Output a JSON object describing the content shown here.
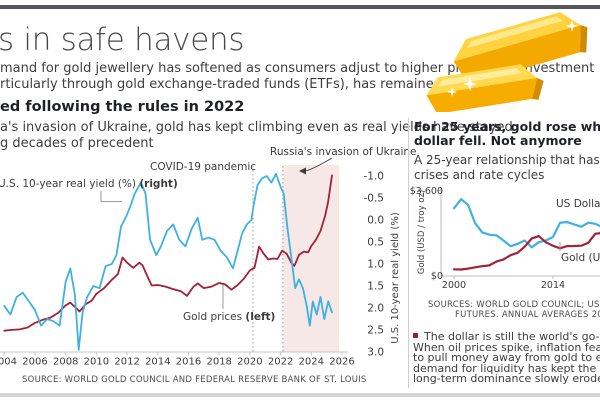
{
  "page": {
    "title": "s in safe havens",
    "intro_line1": "mand for gold jewellery has softened as consumers adjust to higher prices. But investment",
    "intro_line2": "rticularly through gold exchange-traded funds (ETFs), has remained resilient."
  },
  "main_chart": {
    "heading": "ed following the rules in 2022",
    "sub_line1": "a's invasion of Ukraine, gold has kept climbing even as real yields have stayed",
    "sub_line2": "g decades of precedent",
    "annotations": {
      "covid": "COVID-19 pandemic",
      "russia": "Russia's invasion of Ukraine",
      "yield_label_prefix": "U.S. 10-year real yield (%) ",
      "yield_label_bold": "(right)",
      "gold_label_prefix": "Gold prices ",
      "gold_label_bold": "(left)"
    },
    "right_axis_title": "U.S. 10-year real yield (%)",
    "source": "SOURCE: WORLD GOLD COUNCIL AND FEDERAL RESERVE BANK OF ST. LOUIS"
  },
  "side_panel": {
    "heading_line1": "For 25 years, gold rose when the",
    "heading_line2": "dollar fell. Not anymore",
    "sub_line1": "A 25-year relationship that has held thr",
    "sub_line2": "crises and rate cycles",
    "y_top_label": "$3,600",
    "y_bottom_label": "$0",
    "y_axis_title": "Gold (USD / troy oz)",
    "legend_dollar": "US Dollar In",
    "legend_gold": "Gold (USD",
    "sources_line1": "SOURCES: WORLD GOLD COUNCIL; US DOL",
    "sources_line2": "FUTURES. ANNUAL AVERAGES 2000-2",
    "bullet_lines": [
      "The dollar is still the world's go-to currency",
      "When oil prices spike, inflation fears prompt",
      "to pull money away from gold to ensure liqui",
      "demand for liquidity has kept the dollar stron",
      "long-term dominance slowly erodes."
    ]
  },
  "colors": {
    "red": "#a5203a",
    "blue": "#3fb1e1",
    "shade": "#f6e8e6",
    "dotted": "#9b9b9b",
    "axis": "#c4c4c4",
    "bullet": "#9e1b30",
    "rule_dark": "#57585b",
    "rule_light": "#d3d5d7",
    "gold_bar": "#ffd23f"
  },
  "chart_data": [
    {
      "type": "line",
      "title": "ed following the rules in 2022",
      "xlim": [
        2004,
        2026
      ],
      "x_ticks": [
        2004,
        2006,
        2008,
        2010,
        2012,
        2014,
        2016,
        2018,
        2020,
        2022,
        2024,
        2026
      ],
      "left_axis": {
        "label": "Gold prices (USD/oz)",
        "range_hint": [
          0,
          3600
        ],
        "ticks_visible": false
      },
      "right_axis": {
        "label": "U.S. 10-year real yield (%)",
        "inverted": true,
        "ticks": [
          "-1.0",
          "-0.5",
          "0.0",
          "0.5",
          "1.0",
          "1.5",
          "2.0",
          "2.5",
          "3.0"
        ]
      },
      "events": [
        {
          "label": "COVID-19 pandemic",
          "year": 2020.2
        },
        {
          "label": "Russia's invasion of Ukraine",
          "year": 2022.15
        }
      ],
      "shaded_region": {
        "from": 2022.15,
        "to": 2025.8
      },
      "series": [
        {
          "name": "Gold prices",
          "axis": "left",
          "color_key": "red",
          "x": [
            2004,
            2004.5,
            2005,
            2005.5,
            2006,
            2006.5,
            2007,
            2007.5,
            2008,
            2008.3,
            2008.6,
            2008.9,
            2009.3,
            2009.7,
            2010,
            2010.5,
            2011,
            2011.4,
            2011.7,
            2012,
            2012.4,
            2012.8,
            2013,
            2013.3,
            2013.6,
            2014,
            2014.5,
            2015,
            2015.5,
            2015.9,
            2016.3,
            2016.6,
            2017,
            2017.5,
            2018,
            2018.4,
            2018.8,
            2019.2,
            2019.6,
            2020,
            2020.3,
            2020.6,
            2020.9,
            2021.2,
            2021.5,
            2021.8,
            2022.1,
            2022.4,
            2022.7,
            2022.9,
            2023.2,
            2023.5,
            2023.8,
            2024,
            2024.3,
            2024.6,
            2024.9,
            2025.1,
            2025.35
          ],
          "values": [
            410,
            425,
            435,
            470,
            560,
            620,
            660,
            750,
            900,
            950,
            870,
            780,
            920,
            990,
            1120,
            1230,
            1390,
            1500,
            1820,
            1720,
            1620,
            1720,
            1670,
            1470,
            1280,
            1290,
            1260,
            1210,
            1170,
            1080,
            1250,
            1320,
            1230,
            1260,
            1330,
            1300,
            1200,
            1290,
            1410,
            1570,
            1620,
            2030,
            1890,
            1780,
            1800,
            1790,
            1950,
            1890,
            1720,
            1660,
            1870,
            1930,
            1920,
            2040,
            2160,
            2330,
            2620,
            2900,
            3400
          ]
        },
        {
          "name": "U.S. 10-year real yield (%)",
          "axis": "right",
          "color_key": "blue",
          "x": [
            2004,
            2004.4,
            2004.8,
            2005.2,
            2005.6,
            2006,
            2006.4,
            2006.8,
            2007.2,
            2007.6,
            2008,
            2008.3,
            2008.6,
            2008.85,
            2009.1,
            2009.4,
            2009.8,
            2010.2,
            2010.6,
            2011,
            2011.3,
            2011.6,
            2011.9,
            2012.2,
            2012.5,
            2012.9,
            2013.2,
            2013.5,
            2013.9,
            2014.2,
            2014.6,
            2015,
            2015.4,
            2015.8,
            2016.2,
            2016.6,
            2016.9,
            2017.3,
            2017.7,
            2018.1,
            2018.5,
            2018.9,
            2019.2,
            2019.5,
            2019.8,
            2020.1,
            2020.25,
            2020.5,
            2020.8,
            2021.1,
            2021.4,
            2021.7,
            2022,
            2022.2,
            2022.45,
            2022.7,
            2022.95,
            2023.2,
            2023.45,
            2023.7,
            2023.9,
            2024.1,
            2024.35,
            2024.6,
            2024.85,
            2025.1,
            2025.35
          ],
          "values": [
            1.95,
            2.15,
            1.75,
            1.65,
            1.85,
            2.05,
            2.4,
            2.25,
            2.3,
            2.4,
            1.4,
            1.1,
            1.7,
            2.95,
            2.1,
            1.75,
            1.5,
            1.55,
            1.05,
            1.0,
            0.8,
            0.15,
            -0.05,
            -0.3,
            -0.6,
            -0.85,
            -0.6,
            0.45,
            0.8,
            0.6,
            0.25,
            0.1,
            0.45,
            0.6,
            0.2,
            -0.05,
            0.45,
            0.4,
            0.45,
            0.7,
            0.85,
            1.1,
            0.7,
            0.3,
            0.1,
            0.0,
            -0.35,
            -0.8,
            -0.95,
            -1.0,
            -0.85,
            -1.05,
            -0.75,
            -0.6,
            0.2,
            0.85,
            1.55,
            1.35,
            1.55,
            1.95,
            2.4,
            1.85,
            2.15,
            1.75,
            2.25,
            1.85,
            2.1
          ]
        }
      ]
    },
    {
      "type": "line",
      "title": "For 25 years, gold rose when the dollar fell. Not anymore",
      "xlim": [
        2000,
        2025
      ],
      "x_ticks": [
        2000,
        2014
      ],
      "ylim_left": [
        0,
        3600
      ],
      "ylim_right_hint": [
        50,
        125
      ],
      "x": [
        2000,
        2001,
        2002,
        2003,
        2004,
        2005,
        2006,
        2007,
        2008,
        2009,
        2010,
        2011,
        2012,
        2013,
        2014,
        2015,
        2016,
        2017,
        2018,
        2019,
        2020,
        2021,
        2022,
        2023,
        2024,
        2025
      ],
      "series": [
        {
          "name": "US Dollar Index",
          "scale": "index",
          "color_key": "blue",
          "values": [
            109,
            117,
            112,
            96,
            88,
            86,
            85.5,
            81,
            76,
            78,
            81,
            75,
            79.5,
            81,
            84,
            96.5,
            97,
            95,
            93,
            96.5,
            95.5,
            92.5,
            102,
            101,
            102.5,
            99
          ]
        },
        {
          "name": "Gold (USD / troy oz)",
          "scale": "gold",
          "color_key": "red",
          "values": [
            279,
            271,
            310,
            363,
            410,
            445,
            604,
            695,
            872,
            972,
            1225,
            1572,
            1669,
            1411,
            1266,
            1160,
            1251,
            1257,
            1269,
            1393,
            1770,
            1799,
            1801,
            1943,
            2389,
            3200
          ]
        }
      ]
    }
  ]
}
